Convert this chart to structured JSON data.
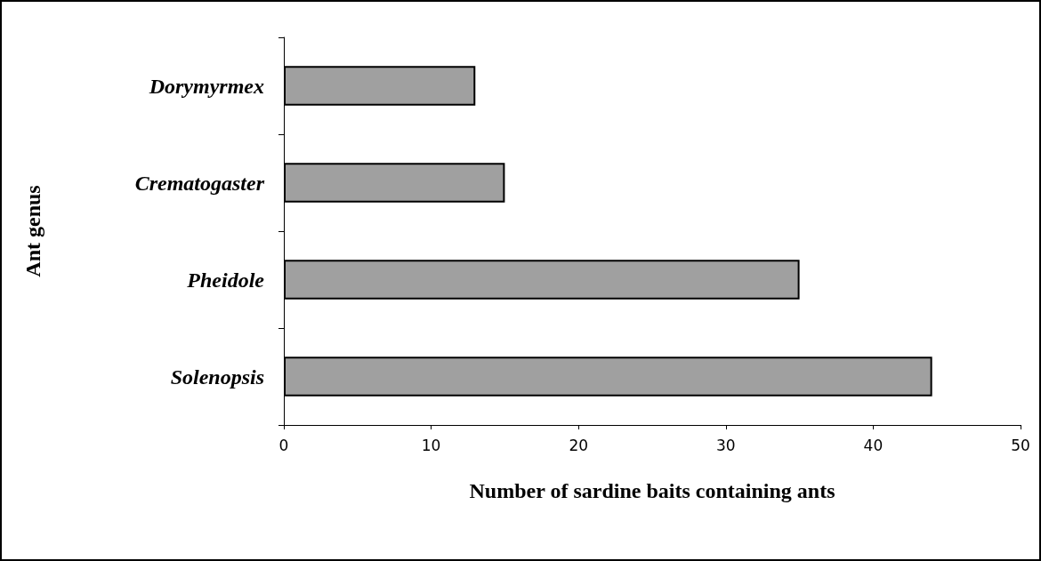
{
  "chart_data": {
    "type": "bar",
    "orientation": "horizontal",
    "categories": [
      "Dorymyrmex",
      "Crematogaster",
      "Pheidole",
      "Solenopsis"
    ],
    "values": [
      13,
      15,
      35,
      44
    ],
    "color": "#a0a0a0",
    "xlabel": "Number of sardine baits containing ants",
    "ylabel": "Ant genus",
    "xlim": [
      0,
      50
    ],
    "xticks": [
      0,
      10,
      20,
      30,
      40,
      50
    ],
    "grid": false
  }
}
